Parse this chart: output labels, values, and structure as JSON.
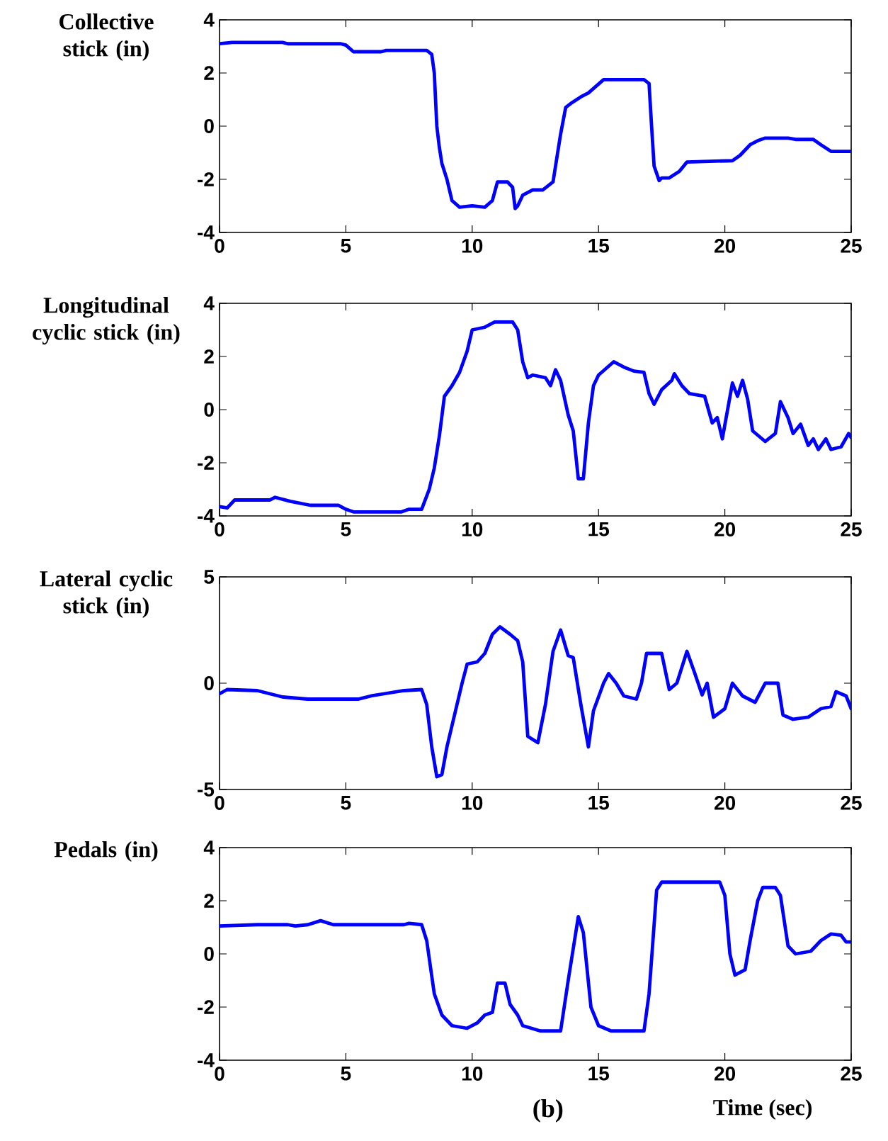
{
  "chart_data": [
    {
      "type": "line",
      "ylabel": "Collective stick (in)",
      "color": "#0000ff",
      "xlim": [
        0,
        25
      ],
      "ylim": [
        -4,
        4
      ],
      "xticks": [
        0,
        5,
        10,
        15,
        20,
        25
      ],
      "yticks": [
        -4,
        -2,
        0,
        2,
        4
      ],
      "x": [
        0,
        0.5,
        2.5,
        2.7,
        4.8,
        5.0,
        5.3,
        6.4,
        6.6,
        8.2,
        8.4,
        8.5,
        8.6,
        8.7,
        8.8,
        9.0,
        9.2,
        9.5,
        10.0,
        10.5,
        10.8,
        11.0,
        11.4,
        11.6,
        11.7,
        11.8,
        12.0,
        12.4,
        12.8,
        13.2,
        13.3,
        13.5,
        13.7,
        13.9,
        14.3,
        14.6,
        15.2,
        16.8,
        17.0,
        17.1,
        17.2,
        17.4,
        17.5,
        17.8,
        18.2,
        18.5,
        20.3,
        20.6,
        21.0,
        21.3,
        21.6,
        22.5,
        22.8,
        23.5,
        23.8,
        24.2,
        25
      ],
      "values": [
        3.1,
        3.15,
        3.15,
        3.1,
        3.1,
        3.05,
        2.8,
        2.8,
        2.85,
        2.85,
        2.7,
        2.0,
        0.0,
        -0.8,
        -1.4,
        -2.0,
        -2.8,
        -3.05,
        -3.0,
        -3.05,
        -2.8,
        -2.1,
        -2.1,
        -2.3,
        -3.1,
        -3.0,
        -2.6,
        -2.4,
        -2.4,
        -2.1,
        -1.5,
        -0.3,
        0.7,
        0.85,
        1.1,
        1.25,
        1.75,
        1.75,
        1.6,
        0.0,
        -1.5,
        -2.05,
        -1.95,
        -1.95,
        -1.7,
        -1.35,
        -1.3,
        -1.1,
        -0.7,
        -0.55,
        -0.45,
        -0.45,
        -0.5,
        -0.5,
        -0.7,
        -0.95,
        -0.95
      ]
    },
    {
      "type": "line",
      "ylabel": "Longitudinal cyclic stick (in)",
      "color": "#0000ff",
      "xlim": [
        0,
        25
      ],
      "ylim": [
        -4,
        4
      ],
      "xticks": [
        0,
        5,
        10,
        15,
        20,
        25
      ],
      "yticks": [
        -4,
        -2,
        0,
        2,
        4
      ],
      "x": [
        0,
        0.3,
        0.6,
        2.0,
        2.2,
        2.8,
        3.6,
        4.3,
        4.7,
        5.0,
        5.3,
        7.2,
        7.5,
        8.0,
        8.3,
        8.5,
        8.7,
        8.9,
        9.2,
        9.5,
        9.8,
        10.0,
        10.5,
        10.9,
        11.6,
        11.8,
        12.0,
        12.2,
        12.4,
        12.9,
        13.1,
        13.3,
        13.5,
        13.8,
        14.0,
        14.2,
        14.4,
        14.6,
        14.8,
        15.0,
        15.6,
        16.0,
        16.4,
        16.8,
        17.0,
        17.2,
        17.5,
        17.9,
        18.0,
        18.3,
        18.6,
        19.2,
        19.5,
        19.7,
        19.9,
        20.3,
        20.5,
        20.7,
        20.9,
        21.1,
        21.6,
        22.0,
        22.2,
        22.5,
        22.7,
        23.0,
        23.3,
        23.5,
        23.7,
        24.0,
        24.2,
        24.6,
        24.9,
        25
      ],
      "values": [
        -3.65,
        -3.7,
        -3.4,
        -3.4,
        -3.3,
        -3.45,
        -3.6,
        -3.6,
        -3.6,
        -3.75,
        -3.85,
        -3.85,
        -3.75,
        -3.75,
        -3.0,
        -2.2,
        -1.0,
        0.5,
        0.9,
        1.4,
        2.2,
        3.0,
        3.1,
        3.3,
        3.3,
        3.0,
        1.8,
        1.2,
        1.3,
        1.2,
        0.9,
        1.5,
        1.1,
        -0.2,
        -0.8,
        -2.6,
        -2.6,
        -0.5,
        0.9,
        1.3,
        1.8,
        1.6,
        1.45,
        1.4,
        0.6,
        0.2,
        0.75,
        1.1,
        1.35,
        0.9,
        0.6,
        0.5,
        -0.5,
        -0.3,
        -1.1,
        1.0,
        0.5,
        1.1,
        0.4,
        -0.8,
        -1.2,
        -0.9,
        0.3,
        -0.3,
        -0.9,
        -0.55,
        -1.35,
        -1.1,
        -1.5,
        -1.1,
        -1.5,
        -1.4,
        -0.9,
        -1.05
      ]
    },
    {
      "type": "line",
      "ylabel": "Lateral cyclic stick (in)",
      "color": "#0000ff",
      "xlim": [
        0,
        25
      ],
      "ylim": [
        -5,
        5
      ],
      "xticks": [
        0,
        5,
        10,
        15,
        20,
        25
      ],
      "yticks": [
        -5,
        0,
        5
      ],
      "x": [
        0,
        0.3,
        1.5,
        2.5,
        3.5,
        5.5,
        6.0,
        6.5,
        7.3,
        8.0,
        8.2,
        8.4,
        8.6,
        8.8,
        9.0,
        9.3,
        9.6,
        9.8,
        10.2,
        10.5,
        10.8,
        11.1,
        11.5,
        11.8,
        12.0,
        12.2,
        12.6,
        12.9,
        13.2,
        13.5,
        13.8,
        14.0,
        14.3,
        14.6,
        14.8,
        15.2,
        15.4,
        15.7,
        16.0,
        16.5,
        16.7,
        16.9,
        17.5,
        17.8,
        18.1,
        18.5,
        18.8,
        19.1,
        19.3,
        19.55,
        20.0,
        20.3,
        20.7,
        21.2,
        21.6,
        22.1,
        22.3,
        22.7,
        23.3,
        23.8,
        24.2,
        24.4,
        24.8,
        25
      ],
      "values": [
        -0.5,
        -0.3,
        -0.35,
        -0.65,
        -0.75,
        -0.75,
        -0.6,
        -0.5,
        -0.35,
        -0.3,
        -1.0,
        -3.0,
        -4.4,
        -4.3,
        -3.0,
        -1.5,
        0.0,
        0.9,
        1.0,
        1.4,
        2.3,
        2.65,
        2.3,
        2.0,
        1.0,
        -2.5,
        -2.8,
        -1.0,
        1.5,
        2.5,
        1.3,
        1.2,
        -1.0,
        -3.0,
        -1.3,
        0.0,
        0.45,
        0.0,
        -0.6,
        -0.75,
        0.0,
        1.4,
        1.4,
        -0.3,
        0.0,
        1.5,
        0.5,
        -0.55,
        0.0,
        -1.6,
        -1.2,
        0.0,
        -0.6,
        -0.9,
        0.0,
        0.0,
        -1.5,
        -1.7,
        -1.6,
        -1.2,
        -1.1,
        -0.4,
        -0.6,
        -1.2
      ]
    },
    {
      "type": "line",
      "ylabel": "Pedals (in)",
      "xlabel": "Time (sec)",
      "annotations": [
        "(b)"
      ],
      "color": "#0000ff",
      "xlim": [
        0,
        25
      ],
      "ylim": [
        -4,
        4
      ],
      "xticks": [
        0,
        5,
        10,
        15,
        20,
        25
      ],
      "yticks": [
        -4,
        -2,
        0,
        2,
        4
      ],
      "x": [
        0,
        1.5,
        2.7,
        3.0,
        3.5,
        4.0,
        4.5,
        7.3,
        7.5,
        8.0,
        8.2,
        8.5,
        8.8,
        9.2,
        9.8,
        10.2,
        10.5,
        10.8,
        11.0,
        11.3,
        11.5,
        11.8,
        12.0,
        12.7,
        13.5,
        13.8,
        14.2,
        14.4,
        14.7,
        15.0,
        15.5,
        16.8,
        17.0,
        17.3,
        17.5,
        19.8,
        20.0,
        20.2,
        20.4,
        20.8,
        21.0,
        21.3,
        21.5,
        22.0,
        22.2,
        22.5,
        22.8,
        23.4,
        23.8,
        24.2,
        24.6,
        24.8,
        25
      ],
      "values": [
        1.05,
        1.1,
        1.1,
        1.05,
        1.1,
        1.25,
        1.1,
        1.1,
        1.15,
        1.1,
        0.5,
        -1.5,
        -2.3,
        -2.7,
        -2.8,
        -2.6,
        -2.3,
        -2.2,
        -1.1,
        -1.1,
        -1.9,
        -2.3,
        -2.7,
        -2.9,
        -2.9,
        -1.0,
        1.4,
        0.8,
        -2.0,
        -2.7,
        -2.9,
        -2.9,
        -1.5,
        2.4,
        2.7,
        2.7,
        2.2,
        0.0,
        -0.8,
        -0.6,
        0.5,
        2.0,
        2.5,
        2.5,
        2.2,
        0.3,
        0.0,
        0.1,
        0.5,
        0.75,
        0.7,
        0.45,
        0.45
      ]
    }
  ]
}
